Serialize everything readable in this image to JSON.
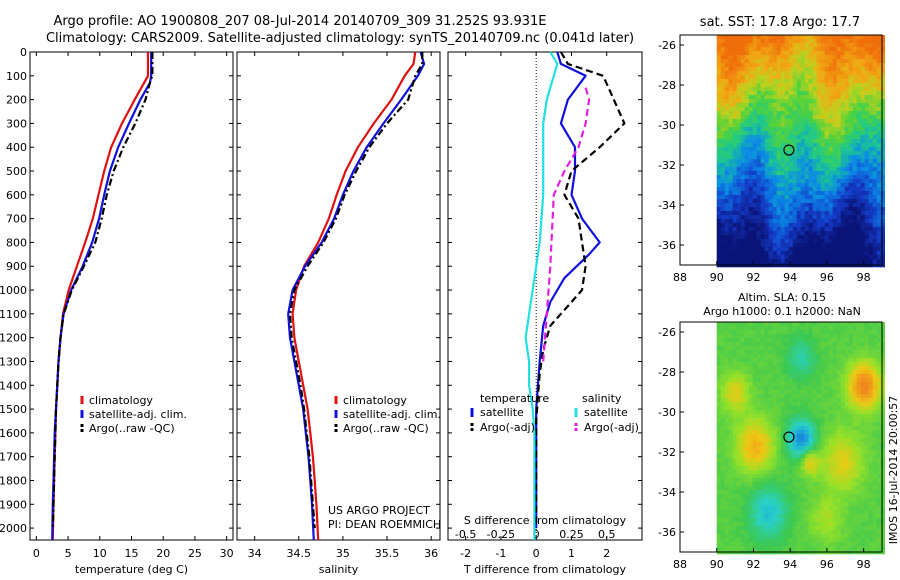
{
  "header": {
    "title_line1": "Argo profile: AO 1900808_207 08-Jul-2014 20140709_309 31.252S 93.931E",
    "title_line2": "Climatology: CARS2009. Satellite-adjusted climatology: synTS_20140709.nc (0.041d later)"
  },
  "side_label": "IMOS 16-Jul-2014 20:00:57",
  "project_note": {
    "line1": "US ARGO PROJECT",
    "line2": "PI: DEAN ROEMMICH"
  },
  "colors": {
    "climatology": "#e01010",
    "satellite": "#1010dd",
    "argo": "#000000",
    "cyan": "#22e0e0",
    "magenta": "#e020e0"
  },
  "chart_data": [
    {
      "type": "line",
      "name": "temperature-panel",
      "xlabel": "temperature (deg C)",
      "xlim": [
        -1,
        31
      ],
      "xticks": [
        0,
        5,
        10,
        15,
        20,
        25,
        30
      ],
      "ylim": [
        0,
        2050
      ],
      "yticks": [
        0,
        100,
        200,
        300,
        400,
        500,
        600,
        700,
        800,
        900,
        1000,
        1100,
        1200,
        1300,
        1400,
        1500,
        1600,
        1700,
        1800,
        1900,
        2000
      ],
      "legend": {
        "placement": "lower-left",
        "entries": [
          "climatology",
          "satellite-adj. clim.",
          "Argo(..raw -QC)"
        ]
      },
      "series": [
        {
          "name": "climatology",
          "style": "solid",
          "color": "#e01010",
          "x": [
            17.6,
            17.6,
            17.4,
            15.5,
            13.5,
            11.8,
            10.7,
            9.8,
            8.9,
            7.7,
            6.4,
            5.1,
            4.2,
            3.8,
            3.5,
            3.3,
            3.1,
            3.0,
            2.9,
            2.8,
            2.7,
            2.6
          ],
          "y": [
            0,
            100,
            110,
            200,
            300,
            400,
            500,
            600,
            700,
            800,
            900,
            1000,
            1100,
            1200,
            1300,
            1400,
            1500,
            1600,
            1700,
            1800,
            1900,
            2050
          ]
        },
        {
          "name": "satellite-adj. clim.",
          "style": "solid",
          "color": "#1010dd",
          "x": [
            18.1,
            18.1,
            17.9,
            16.4,
            14.6,
            12.9,
            11.6,
            10.7,
            9.9,
            8.8,
            7.3,
            5.5,
            4.3,
            3.8,
            3.5,
            3.3,
            3.1,
            2.9,
            2.8,
            2.7,
            2.6,
            2.5
          ],
          "y": [
            0,
            100,
            130,
            200,
            300,
            400,
            500,
            600,
            700,
            800,
            900,
            1000,
            1100,
            1200,
            1300,
            1400,
            1500,
            1600,
            1700,
            1800,
            1900,
            2050
          ]
        },
        {
          "name": "Argo(..raw -QC)",
          "style": "dashdot",
          "color": "#000000",
          "x": [
            18.3,
            18.3,
            18.0,
            17.2,
            15.6,
            13.7,
            12.2,
            11.1,
            10.3,
            9.3,
            7.5,
            5.6,
            4.3,
            3.8,
            3.5,
            3.3,
            3.1,
            3.0,
            2.9,
            2.8,
            2.7,
            2.6
          ],
          "y": [
            0,
            100,
            120,
            200,
            300,
            400,
            500,
            600,
            700,
            800,
            900,
            1000,
            1100,
            1200,
            1300,
            1400,
            1500,
            1600,
            1700,
            1800,
            1900,
            2000
          ]
        }
      ]
    },
    {
      "type": "line",
      "name": "salinity-panel",
      "xlabel": "salinity",
      "xlim": [
        33.8,
        36.1
      ],
      "xticks": [
        34,
        34.5,
        35,
        35.5,
        36
      ],
      "ylim": [
        0,
        2050
      ],
      "legend": {
        "placement": "lower-left",
        "entries": [
          "climatology",
          "satellite-adj. clim.",
          "Argo(..raw -QC)"
        ]
      },
      "series": [
        {
          "name": "climatology",
          "style": "solid",
          "color": "#e01010",
          "x": [
            35.82,
            35.8,
            35.7,
            35.55,
            35.35,
            35.17,
            35.03,
            34.93,
            34.84,
            34.72,
            34.56,
            34.47,
            34.43,
            34.45,
            34.5,
            34.55,
            34.6,
            34.63,
            34.66,
            34.68,
            34.7,
            34.72
          ],
          "y": [
            0,
            50,
            100,
            200,
            300,
            400,
            500,
            600,
            700,
            800,
            900,
            1000,
            1100,
            1200,
            1300,
            1400,
            1500,
            1600,
            1700,
            1800,
            1900,
            2050
          ]
        },
        {
          "name": "satellite-adj. clim.",
          "style": "solid",
          "color": "#1010dd",
          "x": [
            35.88,
            35.92,
            35.85,
            35.66,
            35.46,
            35.27,
            35.12,
            35.0,
            34.9,
            34.76,
            34.57,
            34.43,
            34.38,
            34.4,
            34.45,
            34.5,
            34.55,
            34.58,
            34.61,
            34.63,
            34.65,
            34.67
          ],
          "y": [
            0,
            50,
            100,
            200,
            300,
            400,
            500,
            600,
            700,
            800,
            900,
            1000,
            1100,
            1200,
            1300,
            1400,
            1500,
            1600,
            1700,
            1800,
            1900,
            2050
          ]
        },
        {
          "name": "Argo(..raw -QC)",
          "style": "dashdot",
          "color": "#000000",
          "x": [
            35.9,
            35.9,
            35.82,
            35.74,
            35.5,
            35.3,
            35.15,
            35.02,
            34.92,
            34.78,
            34.6,
            34.45,
            34.4,
            34.42,
            34.47,
            34.52,
            34.56,
            34.59,
            34.62,
            34.64,
            34.66,
            34.68
          ],
          "y": [
            0,
            50,
            100,
            200,
            300,
            400,
            500,
            600,
            700,
            800,
            900,
            1000,
            1100,
            1200,
            1300,
            1400,
            1500,
            1600,
            1700,
            1800,
            1900,
            2000
          ]
        }
      ]
    },
    {
      "type": "line",
      "name": "difference-panel",
      "xlabel": "T difference from climatology",
      "top_axis_label": "S difference from climatology",
      "xlim": [
        -2.5,
        3
      ],
      "xticks": [
        -2,
        -1,
        0,
        1,
        2
      ],
      "top_ticks": [
        -0.5,
        -0.25,
        0,
        0.25,
        0.5
      ],
      "top_tick_labels": [
        "-0.5",
        "-0.25",
        "0",
        "0.25",
        "0.5"
      ],
      "ylim": [
        0,
        2050
      ],
      "legend": {
        "placement": "lower-center",
        "temperature_heading": "temperature",
        "salinity_heading": "salinity",
        "entries": [
          "satellite",
          "Argo(-adj)",
          "satellite",
          "Argo(-adj)"
        ]
      },
      "series": [
        {
          "name": "satellite",
          "group": "temperature",
          "style": "solid",
          "color": "#1010dd",
          "x": [
            0.6,
            0.7,
            1.4,
            0.9,
            0.7,
            1.1,
            1.1,
            1.0,
            1.3,
            1.8,
            1.5,
            0.8,
            0.4,
            0.2,
            0.1,
            0.05,
            0.0,
            0.0,
            0.0,
            0.0,
            0.0,
            0.0
          ],
          "y": [
            0,
            50,
            100,
            200,
            300,
            400,
            500,
            600,
            700,
            800,
            850,
            950,
            1050,
            1150,
            1300,
            1400,
            1500,
            1600,
            1700,
            1800,
            1900,
            2000
          ]
        },
        {
          "name": "Argo(-adj)",
          "group": "temperature",
          "style": "dashed",
          "color": "#000000",
          "x": [
            0.7,
            0.9,
            1.9,
            2.5,
            1.8,
            1.0,
            0.8,
            1.2,
            1.3,
            1.4,
            1.3,
            1.0,
            0.4,
            0.2,
            0.1,
            0.05,
            0.0,
            0.0,
            0.0,
            0.0,
            0.0,
            0.0
          ],
          "y": [
            0,
            50,
            100,
            300,
            400,
            500,
            600,
            700,
            800,
            900,
            1000,
            1050,
            1150,
            1250,
            1350,
            1450,
            1550,
            1650,
            1750,
            1850,
            1950,
            2000
          ]
        },
        {
          "name": "satellite",
          "group": "salinity",
          "style": "solid",
          "color": "#22e0e0",
          "x": [
            0.4,
            0.6,
            0.5,
            0.3,
            0.2,
            0.2,
            0.2,
            0.1,
            0.0,
            -0.1,
            -0.2,
            -0.3,
            -0.2,
            -0.2,
            -0.1,
            -0.05,
            -0.05,
            -0.05,
            -0.05,
            -0.05,
            -0.05
          ],
          "y": [
            0,
            50,
            100,
            200,
            300,
            400,
            600,
            800,
            900,
            1000,
            1100,
            1200,
            1300,
            1400,
            1500,
            1600,
            1700,
            1800,
            1900,
            2000,
            2050
          ]
        },
        {
          "name": "Argo(-adj)",
          "group": "salinity",
          "style": "dashed",
          "color": "#e020e0",
          "x": [
            1.4,
            1.5,
            1.4,
            1.2,
            0.8,
            0.5,
            0.4,
            0.3,
            0.2
          ],
          "y": [
            150,
            200,
            300,
            400,
            500,
            600,
            900,
            1100,
            1300
          ]
        }
      ]
    },
    {
      "type": "heatmap",
      "name": "sst-map",
      "title": "sat. SST: 17.8 Argo: 17.7",
      "xlim": [
        88,
        99
      ],
      "ylim": [
        -37,
        -25.5
      ],
      "xticks": [
        88,
        90,
        92,
        94,
        96,
        98
      ],
      "yticks": [
        -26,
        -28,
        -30,
        -32,
        -34,
        -36
      ],
      "data_extent_x": [
        90,
        99
      ],
      "data_extent_y": [
        -37,
        -25.5
      ],
      "argo_position": {
        "lon": 93.931,
        "lat": -31.252
      },
      "sst": 17.8,
      "argo": 17.7
    },
    {
      "type": "heatmap",
      "name": "sla-map",
      "title_line1": "Altim. SLA: 0.15",
      "title_line2": "Argo h1000: 0.1 h2000: NaN",
      "xlim": [
        88,
        99
      ],
      "ylim": [
        -37,
        -25.5
      ],
      "xticks": [
        88,
        90,
        92,
        94,
        96,
        98
      ],
      "yticks": [
        -26,
        -28,
        -30,
        -32,
        -34,
        -36
      ],
      "data_extent_x": [
        90,
        99
      ],
      "data_extent_y": [
        -37,
        -25.5
      ],
      "argo_position": {
        "lon": 93.931,
        "lat": -31.252
      },
      "sla": 0.15,
      "argo_h1000": 0.1
    }
  ]
}
